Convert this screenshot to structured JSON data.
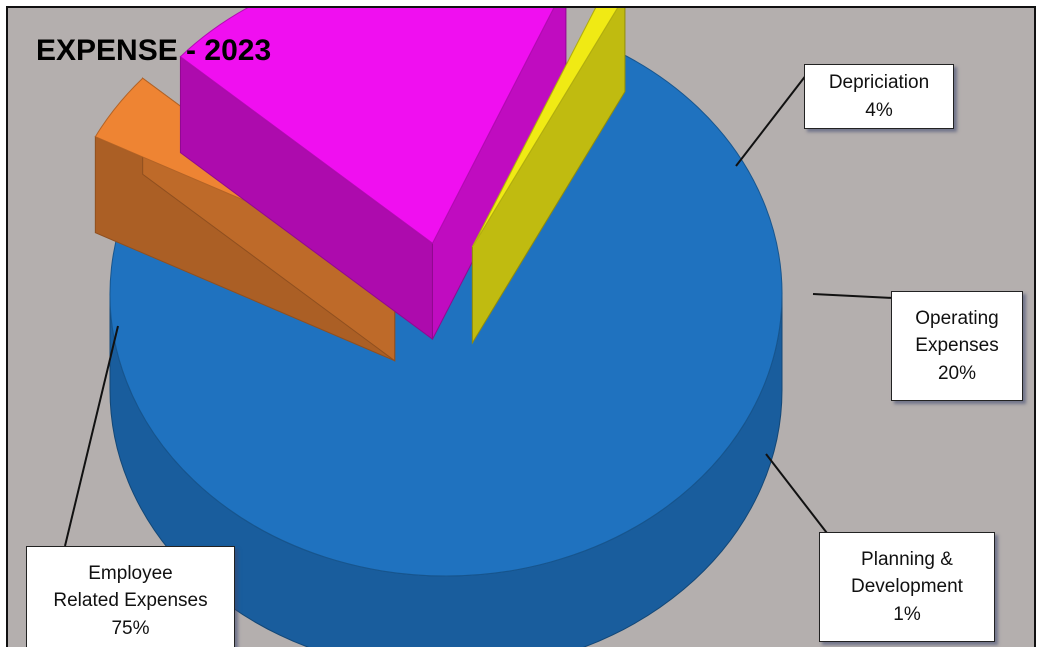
{
  "chart_data": {
    "type": "pie",
    "title": "EXPENSE - 2023",
    "slices": [
      {
        "name_lines": [
          "Employee",
          "Related Expenses"
        ],
        "percent_label": "75%",
        "value": 75,
        "color": "#1f72bf"
      },
      {
        "name_lines": [
          "Depriciation"
        ],
        "percent_label": "4%",
        "value": 4,
        "color": "#ee8433"
      },
      {
        "name_lines": [
          "Operating",
          "Expenses"
        ],
        "percent_label": "20%",
        "value": 20,
        "color": "#f00ff0"
      },
      {
        "name_lines": [
          "Planning &",
          "Development"
        ],
        "percent_label": "1%",
        "value": 1,
        "color": "#f0ea14"
      }
    ],
    "style": "3d-exploded",
    "legend": "none",
    "data_labels": "callouts"
  }
}
